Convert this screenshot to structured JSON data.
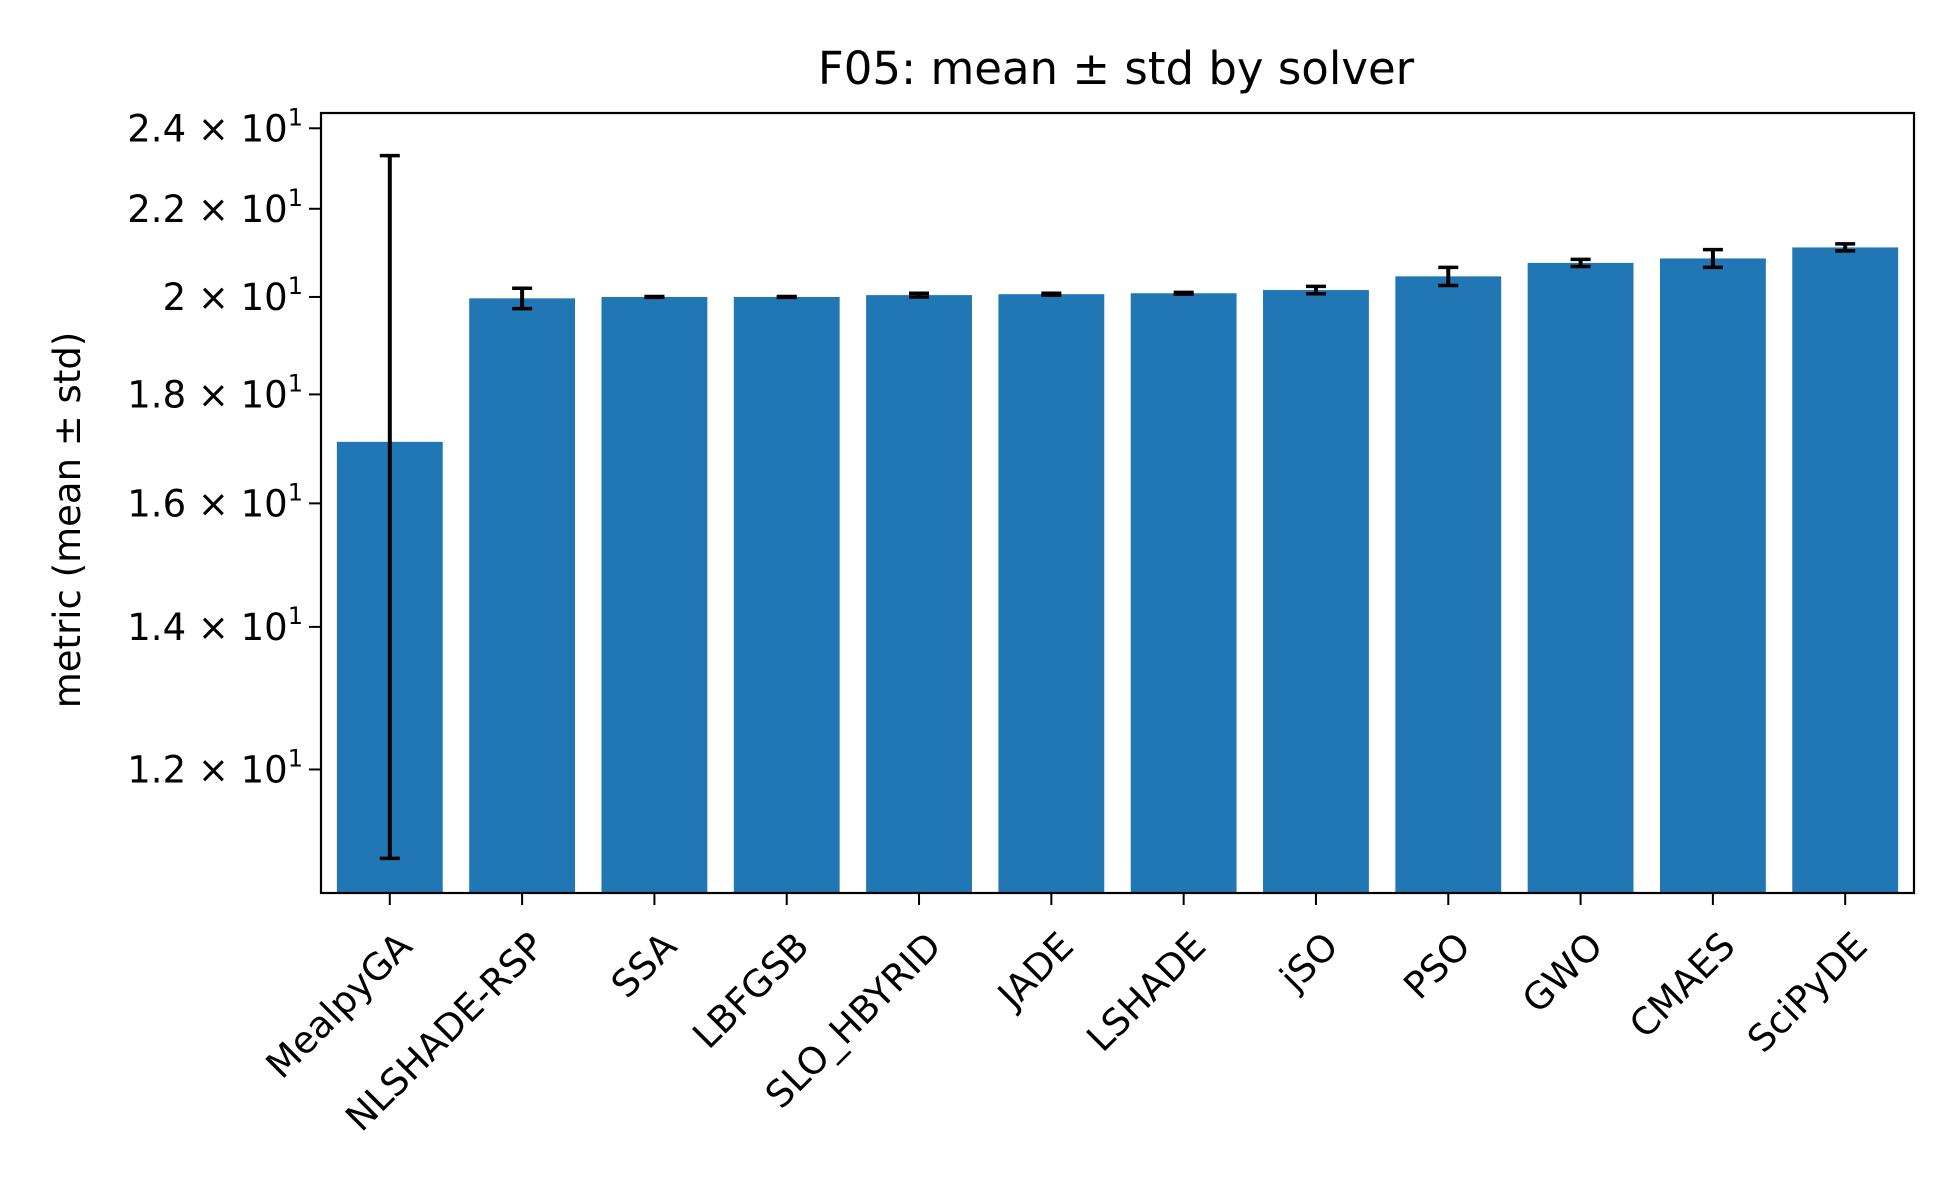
{
  "chart_data": {
    "type": "bar",
    "title": "F05: mean ± std by solver",
    "xlabel": "",
    "ylabel": "metric (mean ± std)",
    "y_scale": "log",
    "ylim": [
      10.5,
      24.4
    ],
    "grid": false,
    "legend": "none",
    "categories": [
      "MealpyGA",
      "NLSHADE-RSP",
      "SSA",
      "LBFGSB",
      "SLO_HBYRID",
      "JADE",
      "LSHADE",
      "jSO",
      "PSO",
      "GWO",
      "CMAES",
      "SciPyDE"
    ],
    "values": [
      17.1,
      19.97,
      20.0,
      20.0,
      20.04,
      20.06,
      20.08,
      20.15,
      20.45,
      20.75,
      20.85,
      21.1
    ],
    "errors": [
      6.2,
      0.22,
      0.01,
      0.01,
      0.04,
      0.02,
      0.02,
      0.08,
      0.2,
      0.08,
      0.2,
      0.08
    ],
    "yticks": [
      {
        "value": 12,
        "mantissa": "1.2",
        "exp": "1"
      },
      {
        "value": 14,
        "mantissa": "1.4",
        "exp": "1"
      },
      {
        "value": 16,
        "mantissa": "1.6",
        "exp": "1"
      },
      {
        "value": 18,
        "mantissa": "1.8",
        "exp": "1"
      },
      {
        "value": 20,
        "mantissa": "2",
        "exp": "1"
      },
      {
        "value": 22,
        "mantissa": "2.2",
        "exp": "1"
      },
      {
        "value": 24,
        "mantissa": "2.4",
        "exp": "1"
      }
    ],
    "tick_base": "× 10",
    "colors": {
      "bar": "#2077b4",
      "error": "#000000",
      "axes": "#000000"
    }
  }
}
